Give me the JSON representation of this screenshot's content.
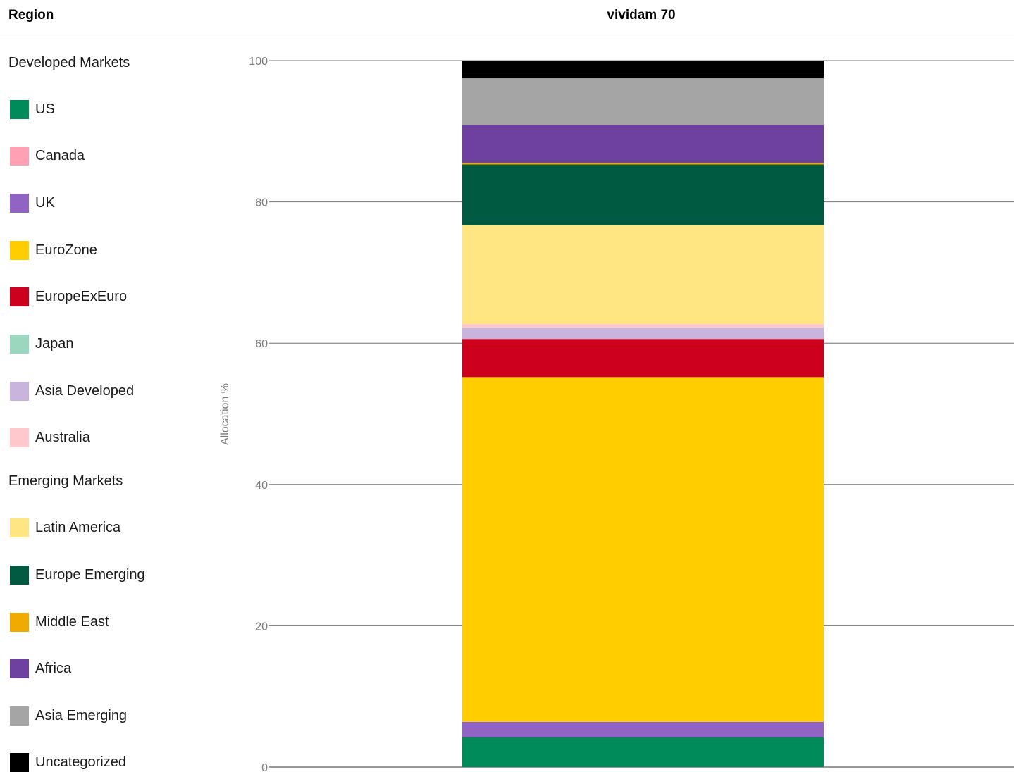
{
  "header": {
    "region_label": "Region",
    "fund_label": "vividam 70"
  },
  "legend": {
    "groups": [
      {
        "label": "Developed Markets",
        "items": [
          {
            "label": "US",
            "color": "#008C5A"
          },
          {
            "label": "Canada",
            "color": "#FFA0B4"
          },
          {
            "label": "UK",
            "color": "#9164C3"
          },
          {
            "label": "EuroZone",
            "color": "#FFCD00"
          },
          {
            "label": "EuropeExEuro",
            "color": "#CD001E"
          },
          {
            "label": "Japan",
            "color": "#9BD7BE"
          },
          {
            "label": "Asia Developed",
            "color": "#C8B4DC"
          },
          {
            "label": "Australia",
            "color": "#FFC8CD"
          }
        ]
      },
      {
        "label": "Emerging Markets",
        "items": [
          {
            "label": "Latin America",
            "color": "#FFE682"
          },
          {
            "label": "Europe Emerging",
            "color": "#005A41"
          },
          {
            "label": "Middle East",
            "color": "#F0AA00"
          },
          {
            "label": "Africa",
            "color": "#6E41A0"
          },
          {
            "label": "Asia Emerging",
            "color": "#A5A5A5"
          },
          {
            "label": "Uncategorized",
            "color": "#000000"
          }
        ]
      }
    ]
  },
  "chart_data": {
    "type": "bar",
    "stacked": true,
    "categories": [
      "vividam 70"
    ],
    "ylabel": "Allocation %",
    "ylim": [
      0,
      100
    ],
    "yticks": [
      0,
      20,
      40,
      60,
      80,
      100
    ],
    "grid": true,
    "series": [
      {
        "name": "US",
        "values": [
          4.2
        ],
        "color": "#008C5A"
      },
      {
        "name": "Canada",
        "values": [
          0.0
        ],
        "color": "#FFA0B4"
      },
      {
        "name": "UK",
        "values": [
          2.2
        ],
        "color": "#9164C3"
      },
      {
        "name": "EuroZone",
        "values": [
          48.8
        ],
        "color": "#FFCD00"
      },
      {
        "name": "EuropeExEuro",
        "values": [
          5.4
        ],
        "color": "#CD001E"
      },
      {
        "name": "Japan",
        "values": [
          0.0
        ],
        "color": "#9BD7BE"
      },
      {
        "name": "Asia Developed",
        "values": [
          1.6
        ],
        "color": "#C8B4DC"
      },
      {
        "name": "Australia",
        "values": [
          0.5
        ],
        "color": "#FFC8CD"
      },
      {
        "name": "Latin America",
        "values": [
          14.0
        ],
        "color": "#FFE682"
      },
      {
        "name": "Europe Emerging",
        "values": [
          8.6
        ],
        "color": "#005A41"
      },
      {
        "name": "Middle East",
        "values": [
          0.2
        ],
        "color": "#F0AA00"
      },
      {
        "name": "Africa",
        "values": [
          5.4
        ],
        "color": "#6E41A0"
      },
      {
        "name": "Asia Emerging",
        "values": [
          6.6
        ],
        "color": "#A5A5A5"
      },
      {
        "name": "Uncategorized",
        "values": [
          2.5
        ],
        "color": "#000000"
      }
    ]
  }
}
